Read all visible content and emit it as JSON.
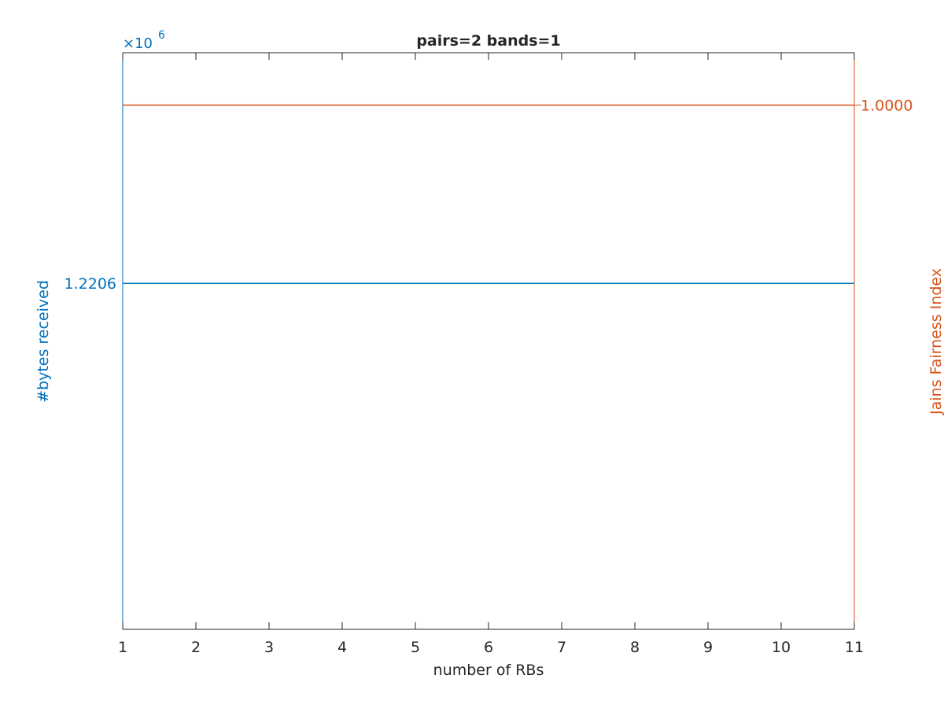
{
  "chart_data": {
    "type": "line",
    "title": "pairs=2 bands=1",
    "x_label": "number of RBs",
    "y_label": "#bytes received",
    "y2_label": "Jains Fairness Index",
    "y_exponent_base": "×10",
    "y_exponent_power": "6",
    "x": [
      1,
      2,
      3,
      4,
      5,
      6,
      7,
      8,
      9,
      10,
      11
    ],
    "xlim": [
      1,
      11
    ],
    "xticks": [
      1,
      2,
      3,
      4,
      5,
      6,
      7,
      8,
      9,
      10,
      11
    ],
    "ylim": [
      1.22,
      1.221
    ],
    "yticks": [
      {
        "value": 1.2206,
        "label": "1.2206"
      }
    ],
    "y2lim": [
      0.99,
      1.001
    ],
    "y2ticks": [
      {
        "value": 1,
        "label": "1.0000"
      }
    ],
    "y_color": "#0072BD",
    "y2_color": "#D95319",
    "series": [
      {
        "color": "#0072BD",
        "values": [
          1.2206,
          1.2206,
          1.2206,
          1.2206,
          1.2206,
          1.2206,
          1.2206,
          1.2206,
          1.2206,
          1.2206,
          1.2206
        ]
      },
      {
        "color": "#D95319",
        "axis": "y2",
        "values": [
          1,
          1,
          1,
          1,
          1,
          1,
          1,
          1,
          1,
          1,
          1
        ]
      }
    ]
  }
}
